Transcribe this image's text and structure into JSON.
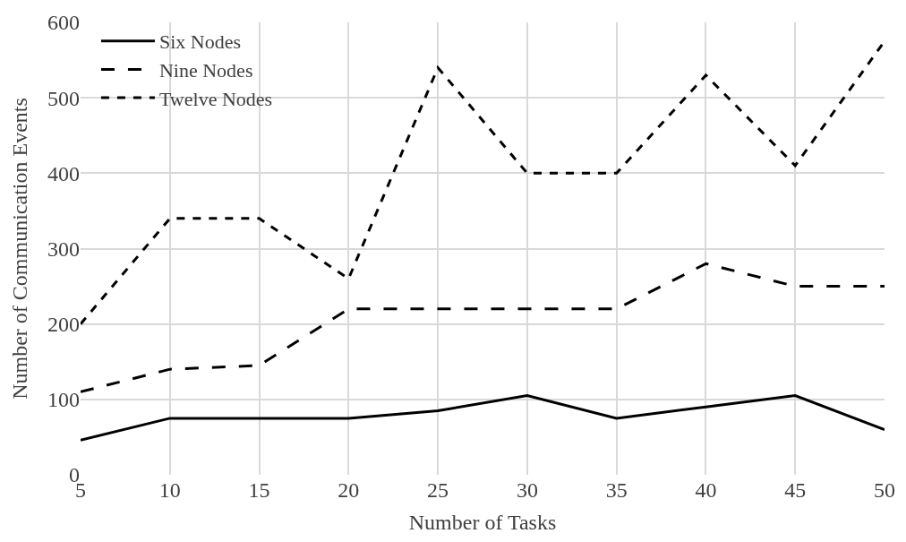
{
  "chart_data": {
    "type": "line",
    "xlabel": "Number of Tasks",
    "ylabel": "Number of Communication Events",
    "x": [
      5,
      10,
      15,
      20,
      25,
      30,
      35,
      40,
      45,
      50
    ],
    "series": [
      {
        "name": "Six Nodes",
        "color": "#000000",
        "line_style": "solid",
        "values": [
          46,
          75,
          75,
          75,
          85,
          105,
          75,
          90,
          105,
          60
        ]
      },
      {
        "name": "Nine Nodes",
        "color": "#000000",
        "line_style": "dashed",
        "values": [
          110,
          140,
          145,
          220,
          220,
          220,
          220,
          280,
          250,
          250
        ]
      },
      {
        "name": "Twelve Nodes",
        "color": "#000000",
        "line_style": "dotted",
        "values": [
          200,
          340,
          340,
          260,
          540,
          400,
          400,
          530,
          410,
          575
        ]
      }
    ],
    "xlim": [
      5,
      50
    ],
    "xticks": [
      5,
      10,
      15,
      20,
      25,
      30,
      35,
      40,
      45,
      50
    ],
    "ylim": [
      0,
      600
    ],
    "yticks": [
      0,
      100,
      200,
      300,
      400,
      500,
      600
    ],
    "grid": true,
    "legend": "top left",
    "marker": "none"
  }
}
